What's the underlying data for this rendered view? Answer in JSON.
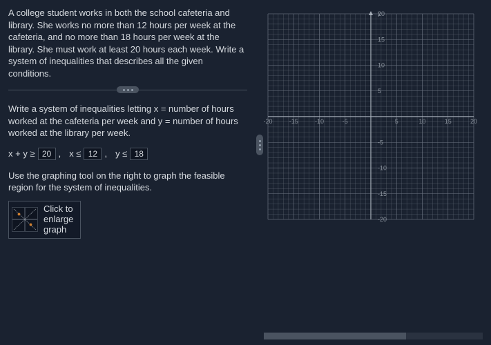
{
  "problem": {
    "statement": "A college student works in both the school cafeteria and library. She works no more than 12 hours per week at the cafeteria, and no more than 18 hours per week at the library. She must work at least 20 hours each week. Write a system of inequalities that describes all the given conditions.",
    "sub_instruction": "Write a system of inequalities letting x = number of hours worked at the cafeteria per week and y = number of hours worked at the library per week.",
    "graph_instruction": "Use the graphing tool on the right to graph the feasible region for the system of inequalities.",
    "enlarge_label": "Click to\nenlarge\ngraph"
  },
  "inequalities": {
    "expr1_prefix": "x + y ≥",
    "val1": "20",
    "sep1": ",",
    "expr2_prefix": "x ≤",
    "val2": "12",
    "sep2": ",",
    "expr3_prefix": "y ≤",
    "val3": "18"
  },
  "graph": {
    "y_label": "y",
    "xlim": [
      -20,
      20
    ],
    "ylim": [
      -20,
      20
    ],
    "major_step": 5,
    "minor_step": 1,
    "axis_ticks": [
      "-20",
      "-15",
      "-10",
      "-5",
      "5",
      "10",
      "15",
      "20"
    ],
    "bg_color": "#1a2230",
    "grid_color": "#6a7280",
    "axis_color": "#a8b0ba",
    "tick_label_color": "#8a929c",
    "tick_fontsize": 9
  },
  "colors": {
    "panel_bg": "#1a2230",
    "text": "#d5d9de",
    "border": "#4a5360",
    "input_bg": "#0e1420"
  }
}
